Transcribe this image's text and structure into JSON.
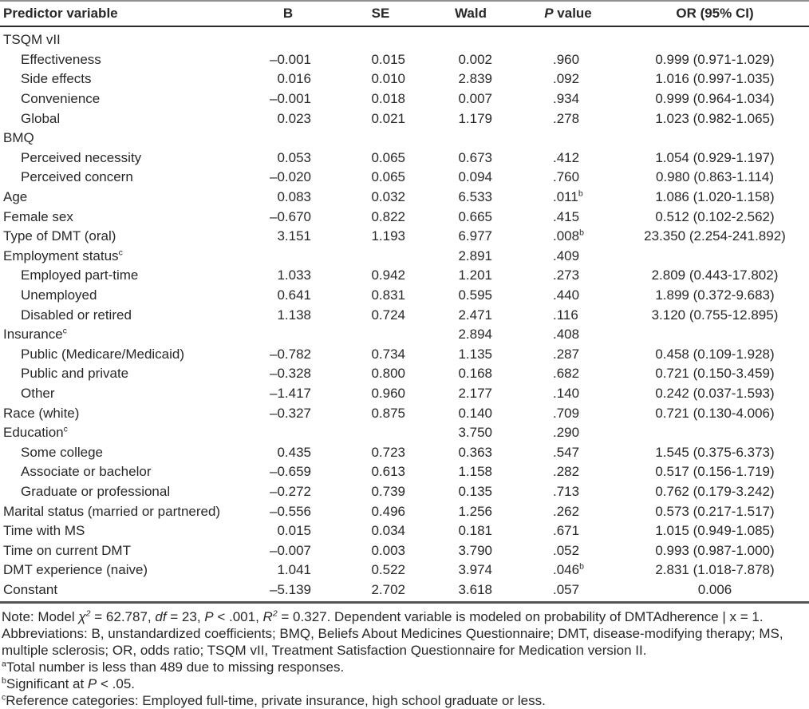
{
  "theme": {
    "background": "#ffffff",
    "text_color": "#282828",
    "top_rule_color": "#8f8f8f",
    "header_rule_color": "#2b2b2b",
    "bottom_rule_color": "#555555"
  },
  "table": {
    "columns": [
      {
        "id": "predictor",
        "label": "Predictor variable"
      },
      {
        "id": "b",
        "label": "B"
      },
      {
        "id": "se",
        "label": "SE"
      },
      {
        "id": "wald",
        "label": "Wald"
      },
      {
        "id": "p",
        "label": "P value",
        "segments": [
          {
            "t": "P",
            "s": "i"
          },
          {
            "t": " value"
          }
        ]
      },
      {
        "id": "or",
        "label": "OR (95% CI)"
      }
    ],
    "rows": [
      {
        "label": "TSQM vII",
        "indent": 0,
        "b": "",
        "se": "",
        "wald": "",
        "p": "",
        "or": ""
      },
      {
        "label": "Effectiveness",
        "indent": 1,
        "b": "–0.001",
        "se": "0.015",
        "wald": "0.002",
        "p": ".960",
        "or": "0.999 (0.971-1.029)"
      },
      {
        "label": "Side effects",
        "indent": 1,
        "b": "0.016",
        "se": "0.010",
        "wald": "2.839",
        "p": ".092",
        "or": "1.016 (0.997-1.035)"
      },
      {
        "label": "Convenience",
        "indent": 1,
        "b": "–0.001",
        "se": "0.018",
        "wald": "0.007",
        "p": ".934",
        "or": "0.999 (0.964-1.034)"
      },
      {
        "label": "Global",
        "indent": 1,
        "b": "0.023",
        "se": "0.021",
        "wald": "1.179",
        "p": ".278",
        "or": "1.023 (0.982-1.065)"
      },
      {
        "label": "BMQ",
        "indent": 0,
        "b": "",
        "se": "",
        "wald": "",
        "p": "",
        "or": ""
      },
      {
        "label": "Perceived necessity",
        "indent": 1,
        "b": "0.053",
        "se": "0.065",
        "wald": "0.673",
        "p": ".412",
        "or": "1.054 (0.929-1.197)"
      },
      {
        "label": "Perceived concern",
        "indent": 1,
        "b": "–0.020",
        "se": "0.065",
        "wald": "0.094",
        "p": ".760",
        "or": "0.980 (0.863-1.114)"
      },
      {
        "label": "Age",
        "indent": 0,
        "b": "0.083",
        "se": "0.032",
        "wald": "6.533",
        "p": ".011",
        "p_sup": "b",
        "or": "1.086 (1.020-1.158)"
      },
      {
        "label": "Female sex",
        "indent": 0,
        "b": "–0.670",
        "se": "0.822",
        "wald": "0.665",
        "p": ".415",
        "or": "0.512 (0.102-2.562)"
      },
      {
        "label": "Type of DMT (oral)",
        "indent": 0,
        "b": "3.151",
        "se": "1.193",
        "wald": "6.977",
        "p": ".008",
        "p_sup": "b",
        "or": "23.350 (2.254-241.892)"
      },
      {
        "label": "Employment status",
        "label_sup": "c",
        "indent": 0,
        "b": "",
        "se": "",
        "wald": "2.891",
        "p": ".409",
        "or": ""
      },
      {
        "label": "Employed part-time",
        "indent": 1,
        "b": "1.033",
        "se": "0.942",
        "wald": "1.201",
        "p": ".273",
        "or": "2.809 (0.443-17.802)"
      },
      {
        "label": "Unemployed",
        "indent": 1,
        "b": "0.641",
        "se": "0.831",
        "wald": "0.595",
        "p": ".440",
        "or": "1.899 (0.372-9.683)"
      },
      {
        "label": "Disabled or retired",
        "indent": 1,
        "b": "1.138",
        "se": "0.724",
        "wald": "2.471",
        "p": ".116",
        "or": "3.120 (0.755-12.895)"
      },
      {
        "label": "Insurance",
        "label_sup": "c",
        "indent": 0,
        "b": "",
        "se": "",
        "wald": "2.894",
        "p": ".408",
        "or": ""
      },
      {
        "label": "Public (Medicare/Medicaid)",
        "indent": 1,
        "b": "–0.782",
        "se": "0.734",
        "wald": "1.135",
        "p": ".287",
        "or": "0.458 (0.109-1.928)"
      },
      {
        "label": "Public and private",
        "indent": 1,
        "b": "–0.328",
        "se": "0.800",
        "wald": "0.168",
        "p": ".682",
        "or": "0.721 (0.150-3.459)"
      },
      {
        "label": "Other",
        "indent": 1,
        "b": "–1.417",
        "se": "0.960",
        "wald": "2.177",
        "p": ".140",
        "or": "0.242 (0.037-1.593)"
      },
      {
        "label": "Race (white)",
        "indent": 0,
        "b": "–0.327",
        "se": "0.875",
        "wald": "0.140",
        "p": ".709",
        "or": "0.721 (0.130-4.006)"
      },
      {
        "label": "Education",
        "label_sup": "c",
        "indent": 0,
        "b": "",
        "se": "",
        "wald": "3.750",
        "p": ".290",
        "or": ""
      },
      {
        "label": "Some college",
        "indent": 1,
        "b": "0.435",
        "se": "0.723",
        "wald": "0.363",
        "p": ".547",
        "or": "1.545 (0.375-6.373)"
      },
      {
        "label": "Associate or bachelor",
        "indent": 1,
        "b": "–0.659",
        "se": "0.613",
        "wald": "1.158",
        "p": ".282",
        "or": "0.517 (0.156-1.719)"
      },
      {
        "label": "Graduate or professional",
        "indent": 1,
        "b": "–0.272",
        "se": "0.739",
        "wald": "0.135",
        "p": ".713",
        "or": "0.762 (0.179-3.242)"
      },
      {
        "label": "Marital status (married or partnered)",
        "indent": 0,
        "b": "–0.556",
        "se": "0.496",
        "wald": "1.256",
        "p": ".262",
        "or": "0.573 (0.217-1.517)"
      },
      {
        "label": "Time with MS",
        "indent": 0,
        "b": "0.015",
        "se": "0.034",
        "wald": "0.181",
        "p": ".671",
        "or": "1.015 (0.949-1.085)"
      },
      {
        "label": "Time on current DMT",
        "indent": 0,
        "b": "–0.007",
        "se": "0.003",
        "wald": "3.790",
        "p": ".052",
        "or": "0.993 (0.987-1.000)"
      },
      {
        "label": "DMT experience (naive)",
        "indent": 0,
        "b": "1.041",
        "se": "0.522",
        "wald": "3.974",
        "p": ".046",
        "p_sup": "b",
        "or": "2.831 (1.018-7.878)"
      },
      {
        "label": "Constant",
        "indent": 0,
        "b": "–5.139",
        "se": "2.702",
        "wald": "3.618",
        "p": ".057",
        "or": "0.006"
      }
    ]
  },
  "footnotes": [
    {
      "segments": [
        {
          "t": "Note: Model "
        },
        {
          "t": "χ",
          "s": "i"
        },
        {
          "t": "2",
          "s": "isup"
        },
        {
          "t": " = 62.787, "
        },
        {
          "t": "df",
          "s": "i"
        },
        {
          "t": " = 23, "
        },
        {
          "t": "P",
          "s": "i"
        },
        {
          "t": " < .001, "
        },
        {
          "t": "R",
          "s": "i"
        },
        {
          "t": "2",
          "s": "isup"
        },
        {
          "t": " = 0.327. Dependent variable is modeled on probability of DMTAdherence | x = 1."
        }
      ]
    },
    {
      "segments": [
        {
          "t": "Abbreviations: B, unstandardized coefficients; BMQ, Beliefs About Medicines Questionnaire; DMT, disease-modifying therapy; MS, multiple sclerosis; OR, odds ratio; TSQM vII, Treatment Satisfaction Questionnaire for Medication version II."
        }
      ]
    },
    {
      "segments": [
        {
          "t": "a",
          "s": "sup"
        },
        {
          "t": "Total number is less than 489 due to missing responses."
        }
      ]
    },
    {
      "segments": [
        {
          "t": "b",
          "s": "sup"
        },
        {
          "t": "Significant at "
        },
        {
          "t": "P",
          "s": "i"
        },
        {
          "t": " < .05."
        }
      ]
    },
    {
      "segments": [
        {
          "t": "c",
          "s": "sup"
        },
        {
          "t": "Reference categories: Employed full-time, private insurance, high school graduate or less."
        }
      ]
    }
  ]
}
